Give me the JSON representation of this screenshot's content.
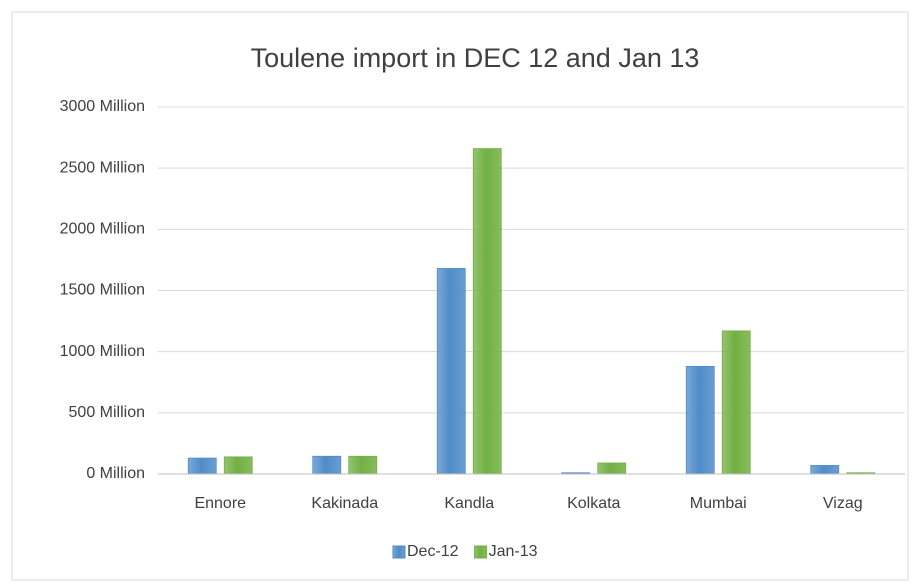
{
  "chart_data": {
    "type": "bar",
    "title": "Toulene import in DEC 12 and Jan 13",
    "categories": [
      "Ennore",
      "Kakinada",
      "Kandla",
      "Kolkata",
      "Mumbai",
      "Vizag"
    ],
    "series": [
      {
        "name": "Dec-12",
        "color": "#4f8cc9",
        "values": [
          130,
          145,
          1680,
          10,
          880,
          70
        ]
      },
      {
        "name": "Jan-13",
        "color": "#72b043",
        "values": [
          140,
          145,
          2660,
          90,
          1170,
          10
        ]
      }
    ],
    "ylim": [
      0,
      3000
    ],
    "yticks": [
      {
        "value": 0,
        "label": "0 Million"
      },
      {
        "value": 500,
        "label": "500 Million"
      },
      {
        "value": 1000,
        "label": "1000 Million"
      },
      {
        "value": 1500,
        "label": "1500 Million"
      },
      {
        "value": 2000,
        "label": "2000 Million"
      },
      {
        "value": 2500,
        "label": "2500 Million"
      },
      {
        "value": 3000,
        "label": "3000 Million"
      }
    ],
    "grid": true,
    "legend": "bottom"
  }
}
